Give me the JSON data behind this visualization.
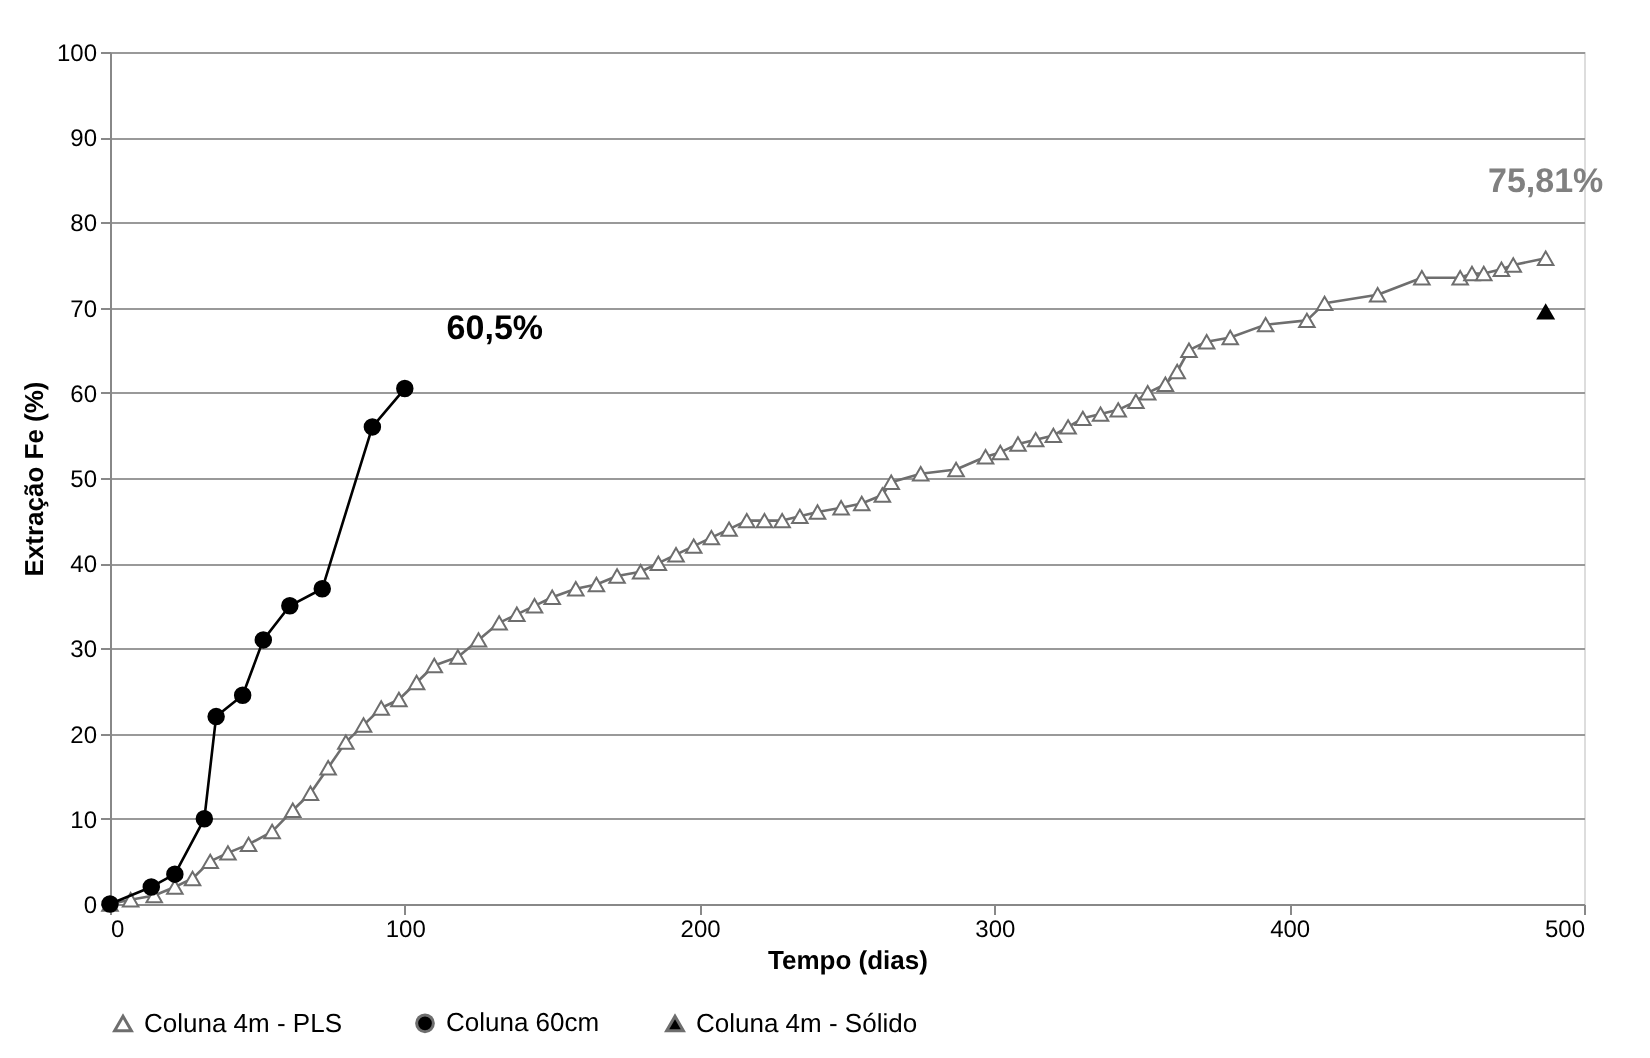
{
  "chart_data": {
    "type": "line",
    "xlabel": "Tempo (dias)",
    "ylabel": "Extração Fe (%)",
    "xlim": [
      0,
      500
    ],
    "xticks": [
      0,
      100,
      200,
      300,
      400,
      500
    ],
    "ylim": [
      0,
      100
    ],
    "yticks": [
      0,
      10,
      20,
      30,
      40,
      50,
      60,
      70,
      80,
      90,
      100
    ],
    "grid": "y",
    "legend": "bottom",
    "line_style": "solid",
    "annotations": [
      "60,5%",
      "75,81%"
    ],
    "series": [
      {
        "name": "Coluna 4m  - PLS",
        "color": "#6e6e6e",
        "marker": "triangle",
        "x": [
          0,
          7,
          15,
          22,
          28,
          34,
          40,
          47,
          55,
          62,
          68,
          74,
          80,
          86,
          92,
          98,
          104,
          110,
          118,
          125,
          132,
          138,
          144,
          150,
          158,
          165,
          172,
          180,
          186,
          192,
          198,
          204,
          210,
          216,
          222,
          228,
          234,
          240,
          248,
          255,
          262,
          265,
          275,
          287,
          297,
          302,
          308,
          314,
          320,
          325,
          330,
          336,
          342,
          348,
          352,
          358,
          362,
          366,
          372,
          380,
          392,
          406,
          412,
          430,
          445,
          458,
          462,
          466,
          472,
          476,
          487
        ],
        "values": [
          0,
          0.5,
          1,
          2,
          3,
          5,
          6,
          7,
          8.5,
          11,
          13,
          16,
          19,
          21,
          23,
          24,
          26,
          28,
          29,
          31,
          33,
          34,
          35,
          36,
          37,
          37.5,
          38.5,
          39,
          40,
          41,
          42,
          43,
          44,
          45,
          45,
          45,
          45.5,
          46,
          46.5,
          47,
          48,
          49.5,
          50.5,
          51,
          52.5,
          53,
          54,
          54.5,
          55,
          56,
          57,
          57.5,
          58,
          59,
          60,
          61,
          62.5,
          65,
          66,
          66.5,
          68,
          68.5,
          70.5,
          71.5,
          73.5,
          73.5,
          74,
          74,
          74.5,
          75,
          75.8
        ]
      },
      {
        "name": "Coluna 60cm",
        "color": "#000000",
        "marker": "circle",
        "x": [
          0,
          14,
          22,
          32,
          36,
          45,
          52,
          61,
          72,
          89,
          100
        ],
        "values": [
          0,
          2,
          3.5,
          10,
          22,
          24.5,
          31,
          35,
          37,
          56,
          60.5
        ]
      },
      {
        "name": "Coluna 4m - Sólido",
        "color": "#000000",
        "marker": "triangle",
        "type": "scatter",
        "x": [
          487
        ],
        "values": [
          69.5
        ]
      }
    ]
  }
}
